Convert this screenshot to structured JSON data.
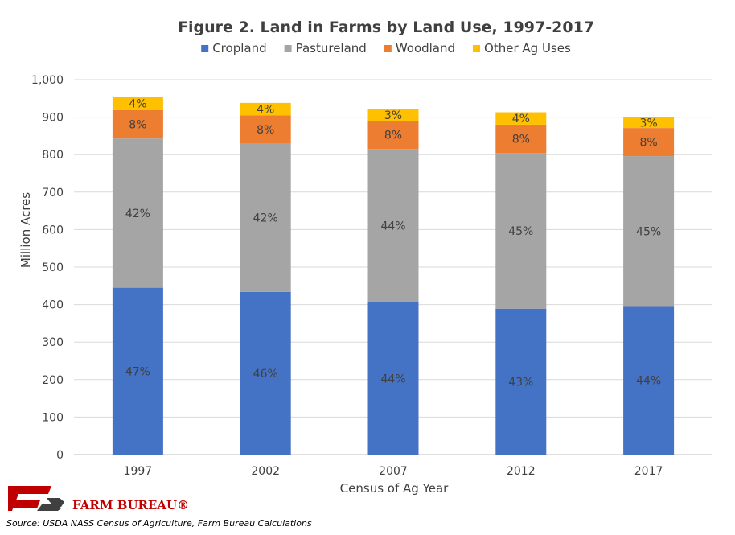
{
  "chart_data": {
    "type": "bar",
    "stacked": true,
    "title": "Figure 2. Land in Farms by Land Use, 1997-2017",
    "xlabel": "Census of Ag Year",
    "ylabel": "Million Acres",
    "ylim": [
      0,
      1000
    ],
    "yticks": [
      "0",
      "100",
      "200",
      "300",
      "400",
      "500",
      "600",
      "700",
      "800",
      "900",
      "1,000"
    ],
    "ytick_values": [
      0,
      100,
      200,
      300,
      400,
      500,
      600,
      700,
      800,
      900,
      1000
    ],
    "grid": true,
    "legend_position": "top",
    "categories": [
      "1997",
      "2002",
      "2007",
      "2012",
      "2017"
    ],
    "series": [
      {
        "name": "Cropland",
        "color": "#4472c4",
        "values": [
          445,
          434,
          406,
          389,
          396
        ],
        "labels": [
          "47%",
          "46%",
          "44%",
          "43%",
          "44%"
        ]
      },
      {
        "name": "Pastureland",
        "color": "#a5a5a5",
        "values": [
          398,
          395,
          409,
          415,
          400
        ],
        "labels": [
          "42%",
          "42%",
          "44%",
          "45%",
          "45%"
        ]
      },
      {
        "name": "Woodland",
        "color": "#ed7d31",
        "values": [
          76,
          76,
          75,
          76,
          75
        ],
        "labels": [
          "8%",
          "8%",
          "8%",
          "8%",
          "8%"
        ]
      },
      {
        "name": "Other Ag Uses",
        "color": "#ffc000",
        "values": [
          35,
          33,
          32,
          33,
          29
        ],
        "labels": [
          "4%",
          "4%",
          "3%",
          "4%",
          "3%"
        ]
      }
    ]
  },
  "logo": {
    "text": "FARM BUREAU®",
    "color": "#c00000"
  },
  "source": "Source: USDA NASS Census of Agriculture, Farm Bureau Calculations",
  "colors": {
    "gridline": "#d9d9d9",
    "axis": "#bfbfbf",
    "text": "#404040"
  }
}
